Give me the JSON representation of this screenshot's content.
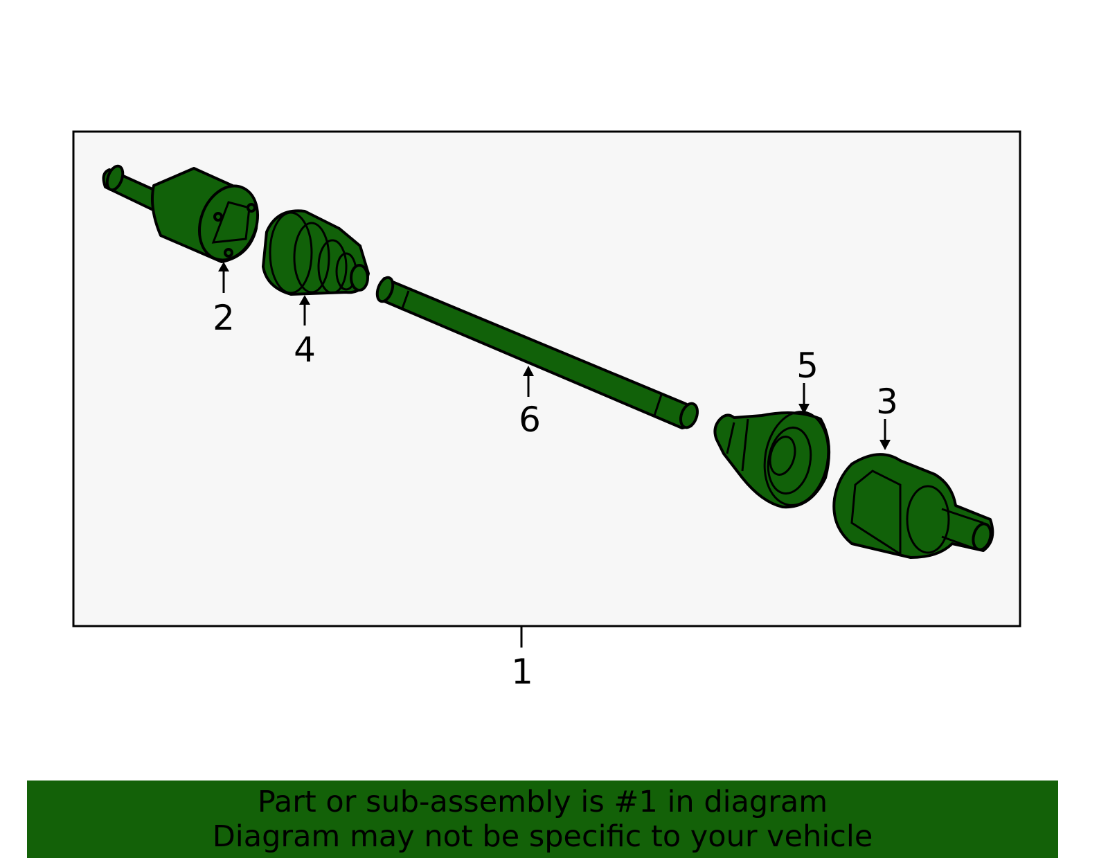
{
  "diagram": {
    "part_color": "#116109",
    "callouts": [
      {
        "number": "1",
        "part": "assembly"
      },
      {
        "number": "2",
        "part": "inner-cv-joint"
      },
      {
        "number": "3",
        "part": "outer-cv-joint"
      },
      {
        "number": "4",
        "part": "inner-boot"
      },
      {
        "number": "5",
        "part": "outer-boot"
      },
      {
        "number": "6",
        "part": "axle-shaft"
      }
    ]
  },
  "banner": {
    "color": "#136108",
    "line1": "Part or sub-assembly is #1 in diagram",
    "line2": "Diagram may not be specific to your vehicle"
  }
}
